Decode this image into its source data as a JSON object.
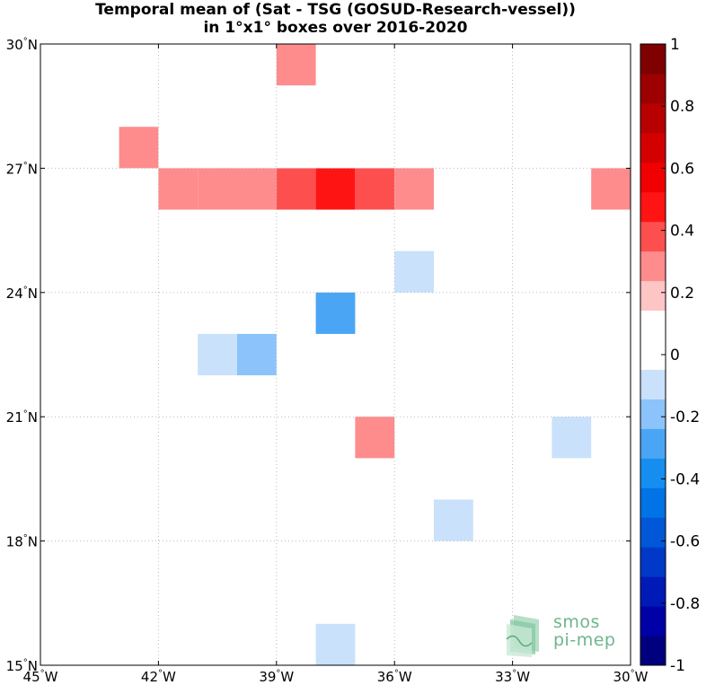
{
  "title_line1": "Temporal mean of (Sat - TSG (GOSUD-Research-vessel))",
  "title_line2": "in 1°x1° boxes over 2016-2020",
  "logo": {
    "line1": "smos",
    "line2": "pi-mep"
  },
  "chart_data": {
    "type": "heatmap",
    "title": "Temporal mean of (Sat - TSG (GOSUD-Research-vessel)) in 1°x1° boxes over 2016-2020",
    "xlim": [
      -45,
      -30
    ],
    "ylim": [
      15,
      30
    ],
    "x_ticks": [
      {
        "value": -45,
        "label": "45°W"
      },
      {
        "value": -42,
        "label": "42°W"
      },
      {
        "value": -39,
        "label": "39°W"
      },
      {
        "value": -36,
        "label": "36°W"
      },
      {
        "value": -33,
        "label": "33°W"
      },
      {
        "value": -30,
        "label": "30°W"
      }
    ],
    "y_ticks": [
      {
        "value": 15,
        "label": "15°N"
      },
      {
        "value": 18,
        "label": "18°N"
      },
      {
        "value": 21,
        "label": "21°N"
      },
      {
        "value": 24,
        "label": "24°N"
      },
      {
        "value": 27,
        "label": "27°N"
      },
      {
        "value": 30,
        "label": "30°N"
      }
    ],
    "grid": true,
    "colorbar": {
      "range": [
        -1,
        1
      ],
      "ticks": [
        {
          "value": 1,
          "label": "1"
        },
        {
          "value": 0.8,
          "label": "0.8"
        },
        {
          "value": 0.6,
          "label": "0.6"
        },
        {
          "value": 0.4,
          "label": "0.4"
        },
        {
          "value": 0.2,
          "label": "0.2"
        },
        {
          "value": 0,
          "label": "0"
        },
        {
          "value": -0.2,
          "label": "-0.2"
        },
        {
          "value": -0.4,
          "label": "-0.4"
        },
        {
          "value": -0.6,
          "label": "-0.6"
        },
        {
          "value": -0.8,
          "label": "-0.8"
        },
        {
          "value": -1,
          "label": "-1"
        }
      ],
      "colors": [
        "#00007f",
        "#0000a7",
        "#001ab8",
        "#0039c8",
        "#0057d8",
        "#0073e6",
        "#158ef0",
        "#4aa5f5",
        "#8cc3fa",
        "#c9e1fa",
        "#ffffff",
        "#ffffff",
        "#fec5c5",
        "#fe8c8c",
        "#fe4f4f",
        "#ff1414",
        "#f00000",
        "#d40000",
        "#b80000",
        "#9c0000",
        "#7f0000"
      ]
    },
    "cells": [
      {
        "lon": -43,
        "lat": 29,
        "value": 0.12
      },
      {
        "lon": -41,
        "lat": 29,
        "value": 0.12
      },
      {
        "lon": -40,
        "lat": 29,
        "value": 0.12
      },
      {
        "lon": -39,
        "lat": 29,
        "value": 0.25
      },
      {
        "lon": -43,
        "lat": 28,
        "value": 0.12
      },
      {
        "lon": -44,
        "lat": 27,
        "value": 0.12
      },
      {
        "lon": -43,
        "lat": 27,
        "value": 0.25
      },
      {
        "lon": -42,
        "lat": 27,
        "value": 0.12
      },
      {
        "lon": -45,
        "lat": 26,
        "value": 0.12
      },
      {
        "lon": -43,
        "lat": 26,
        "value": 0.12
      },
      {
        "lon": -42,
        "lat": 26,
        "value": 0.25
      },
      {
        "lon": -41,
        "lat": 26,
        "value": 0.25
      },
      {
        "lon": -40,
        "lat": 26,
        "value": 0.25
      },
      {
        "lon": -39,
        "lat": 26,
        "value": 0.35
      },
      {
        "lon": -38,
        "lat": 26,
        "value": 0.45
      },
      {
        "lon": -37,
        "lat": 26,
        "value": 0.35
      },
      {
        "lon": -36,
        "lat": 26,
        "value": 0.25
      },
      {
        "lon": -33,
        "lat": 26,
        "value": 0.12
      },
      {
        "lon": -31,
        "lat": 26,
        "value": 0.25
      },
      {
        "lon": -45,
        "lat": 25,
        "value": 0.12
      },
      {
        "lon": -32,
        "lat": 25,
        "value": 0.12
      },
      {
        "lon": -31,
        "lat": 25,
        "value": 0.12
      },
      {
        "lon": -36,
        "lat": 24,
        "value": -0.12
      },
      {
        "lon": -41,
        "lat": 23,
        "value": 0.12
      },
      {
        "lon": -40,
        "lat": 23,
        "value": 0.12
      },
      {
        "lon": -38,
        "lat": 23,
        "value": -0.28
      },
      {
        "lon": -43,
        "lat": 22,
        "value": 0.12
      },
      {
        "lon": -41,
        "lat": 22,
        "value": -0.12
      },
      {
        "lon": -40,
        "lat": 22,
        "value": -0.22
      },
      {
        "lon": -37,
        "lat": 20,
        "value": 0.25
      },
      {
        "lon": -32,
        "lat": 20,
        "value": -0.12
      },
      {
        "lon": -35,
        "lat": 18,
        "value": -0.12
      },
      {
        "lon": -38,
        "lat": 15,
        "value": -0.12
      }
    ]
  }
}
